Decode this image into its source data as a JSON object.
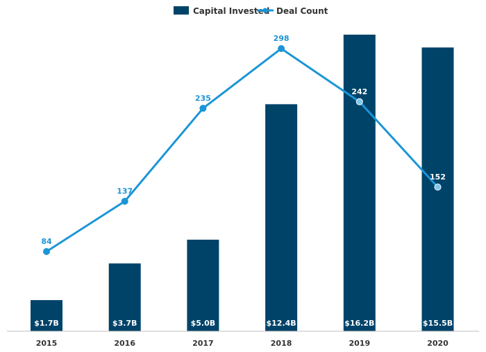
{
  "chart_data": {
    "type": "bar",
    "title": "",
    "xlabel": "",
    "ylabel": "",
    "categories": [
      "2015",
      "2016",
      "2017",
      "2018",
      "2019",
      "2020"
    ],
    "series": [
      {
        "name": "Capital Invested",
        "kind": "bar",
        "color": "#004369",
        "values": [
          1.7,
          3.7,
          5.0,
          12.4,
          16.2,
          15.5
        ],
        "labels": [
          "$1.7B",
          "$3.7B",
          "$5.0B",
          "$12.4B",
          "$16.2B",
          "$15.5B"
        ],
        "axis": "primary",
        "ylim": [
          0,
          16.2
        ]
      },
      {
        "name": "Deal Count",
        "kind": "line",
        "color": "#1b95d6",
        "values": [
          84,
          137,
          235,
          298,
          242,
          152
        ],
        "labels": [
          "84",
          "137",
          "235",
          "298",
          "242",
          "152"
        ],
        "axis": "secondary",
        "ylim": [
          0,
          320
        ]
      }
    ],
    "legend": "top-center",
    "grid": false
  }
}
